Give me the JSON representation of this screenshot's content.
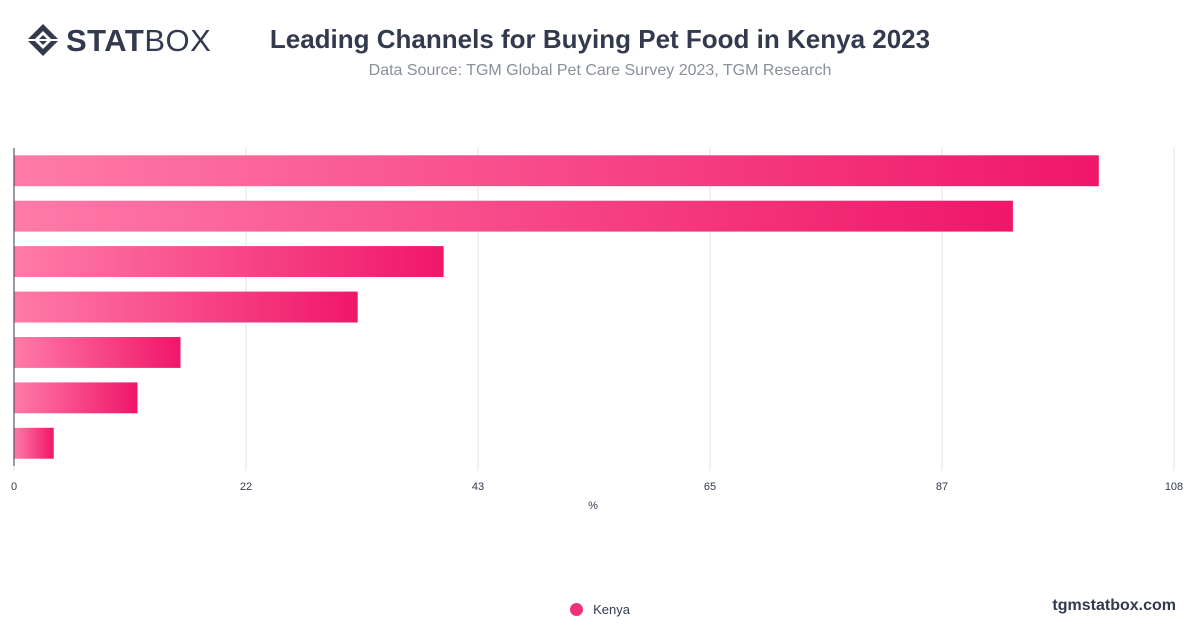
{
  "brand": {
    "logo_bold": "STAT",
    "logo_light": "BOX",
    "watermark": "tgmstatbox.com"
  },
  "header": {
    "title": "Leading Channels for Buying Pet Food in Kenya 2023",
    "subtitle": "Data Source: TGM Global Pet Care Survey 2023, TGM Research"
  },
  "colors": {
    "bar_start": "#ff7ba8",
    "bar_end": "#f0166a",
    "legend_dot": "#f0307a",
    "grid": "#e3e3e3",
    "axis": "#333a4d",
    "text": "#333a4d"
  },
  "chart_data": {
    "type": "bar",
    "orientation": "horizontal",
    "xlabel": "%",
    "xlim": [
      0,
      108
    ],
    "x_ticks": [
      "0",
      "22",
      "43",
      "65",
      "87",
      "108"
    ],
    "x_tick_values": [
      0,
      21.6,
      43.2,
      64.8,
      86.4,
      108
    ],
    "grid": true,
    "legend_position": "bottom",
    "series": [
      {
        "name": "Kenya",
        "values": [
          101,
          93,
          40,
          32,
          15.5,
          11.5,
          3.7
        ]
      }
    ]
  }
}
